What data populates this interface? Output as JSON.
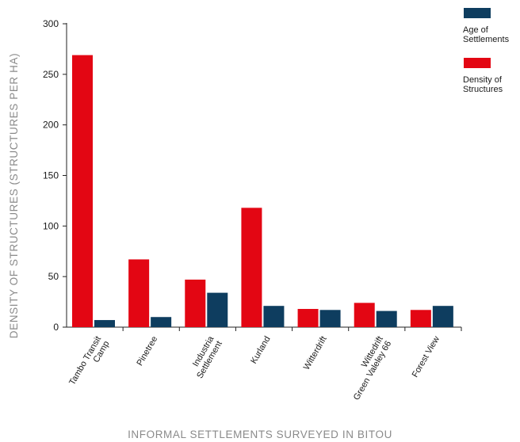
{
  "chart_data": {
    "type": "bar",
    "title": "",
    "xlabel": "INFORMAL SETTLEMENTS SURVEYED IN BITOU",
    "ylabel": "DENSITY OF STRUCTURES (STRUCTURES PER HA)",
    "ylim": [
      0,
      300
    ],
    "yticks": [
      0,
      50,
      100,
      150,
      200,
      250,
      300
    ],
    "grid": false,
    "legend_position": "top-right",
    "categories": [
      [
        "Tambo Transit",
        "Camp"
      ],
      [
        "Pinetree"
      ],
      [
        "Industria",
        "Settlement"
      ],
      [
        "Kurland"
      ],
      [
        "Witterdrift"
      ],
      [
        "Wittedrift",
        "Green Valeley 66"
      ],
      [
        "Forest View"
      ]
    ],
    "series": [
      {
        "name": "Density of Structures",
        "color": "#e30613",
        "values": [
          269,
          67,
          47,
          118,
          18,
          24,
          17
        ]
      },
      {
        "name": "Age of Settlements",
        "color": "#0e3d5f",
        "values": [
          7,
          10,
          34,
          21,
          17,
          16,
          21
        ]
      }
    ],
    "legend": [
      {
        "lines": [
          "Age of",
          "Settlements"
        ],
        "color": "#0e3d5f"
      },
      {
        "lines": [
          "Density of",
          "Structures"
        ],
        "color": "#e30613"
      }
    ]
  }
}
